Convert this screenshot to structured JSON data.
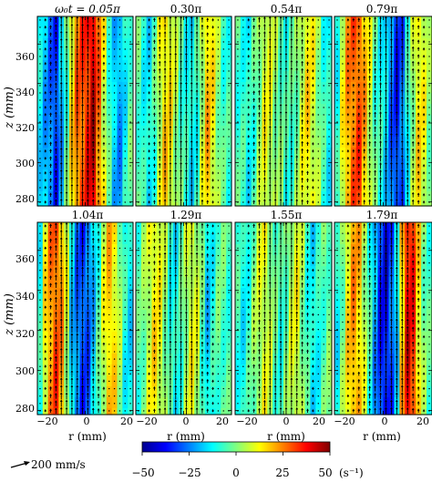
{
  "chart_data": {
    "type": "heatmap",
    "panel_titles": [
      "ω₀t = 0.05π",
      "0.30π",
      "0.54π",
      "0.79π",
      "1.04π",
      "1.29π",
      "1.55π",
      "1.79π"
    ],
    "xlabel": "r (mm)",
    "ylabel": "z (mm)",
    "x_ticks": [
      "−20",
      "0",
      "20"
    ],
    "x_tick_values": [
      -20,
      0,
      20
    ],
    "y_ticks": [
      "280",
      "300",
      "320",
      "340",
      "360"
    ],
    "y_tick_values": [
      280,
      300,
      320,
      340,
      360
    ],
    "xlim": [
      -20,
      20
    ],
    "ylim": [
      278,
      374
    ],
    "colorbar": {
      "ticks": [
        "−50",
        "−25",
        "0",
        "25",
        "50"
      ],
      "tick_values": [
        -50,
        -25,
        0,
        25,
        50
      ],
      "range": [
        -50,
        50
      ],
      "unit": "(s⁻¹)",
      "colormap": "jet"
    },
    "vector_scale_label": "200 mm/s",
    "panels": [
      {
        "title": "ω₀t = 0.05π",
        "vorticity_profile": [
          -14,
          -20,
          -26,
          -34,
          -20,
          -4,
          14,
          26,
          30,
          36,
          42,
          26,
          10,
          -6,
          -18,
          -22,
          -12,
          -4
        ],
        "vector_strength": [
          0.2,
          0.3,
          0.5,
          0.8,
          1.0,
          1.0,
          1.0,
          1.0,
          1.0,
          0.9,
          0.8,
          0.6,
          0.4,
          0.2,
          0.1,
          0.1,
          0.1,
          0.1
        ]
      },
      {
        "title": "0.30π",
        "vorticity_profile": [
          -4,
          -10,
          -14,
          -6,
          8,
          16,
          12,
          4,
          -4,
          -10,
          -14,
          -8,
          6,
          18,
          12,
          2,
          -6,
          -8
        ],
        "vector_strength": [
          0.1,
          0.2,
          0.3,
          0.5,
          0.7,
          0.9,
          1.0,
          1.0,
          1.0,
          1.0,
          1.0,
          0.9,
          0.7,
          0.5,
          0.3,
          0.2,
          0.1,
          0.1
        ]
      },
      {
        "title": "0.54π",
        "vorticity_profile": [
          -6,
          -8,
          -12,
          -6,
          2,
          10,
          8,
          2,
          -2,
          -8,
          -6,
          0,
          8,
          14,
          10,
          2,
          -8,
          -12
        ],
        "vector_strength": [
          0.1,
          0.2,
          0.3,
          0.5,
          0.7,
          0.9,
          1.0,
          1.0,
          1.0,
          1.0,
          1.0,
          0.9,
          0.7,
          0.5,
          0.3,
          0.2,
          0.1,
          0.1
        ]
      },
      {
        "title": "0.79π",
        "vorticity_profile": [
          -10,
          10,
          22,
          28,
          30,
          20,
          8,
          -4,
          -10,
          -16,
          -26,
          -34,
          -28,
          -10,
          4,
          14,
          10,
          0
        ],
        "vector_strength": [
          0.1,
          0.2,
          0.3,
          0.4,
          0.5,
          0.6,
          0.7,
          0.8,
          0.9,
          1.0,
          1.0,
          1.0,
          1.0,
          0.9,
          0.7,
          0.5,
          0.3,
          0.2
        ]
      },
      {
        "title": "1.04π",
        "vorticity_profile": [
          -10,
          12,
          24,
          30,
          22,
          6,
          -16,
          -26,
          -32,
          -28,
          -18,
          -6,
          8,
          18,
          14,
          2,
          -10,
          -14
        ],
        "vector_strength": [
          0.2,
          0.3,
          0.5,
          0.8,
          1.0,
          1.0,
          1.0,
          1.0,
          1.0,
          0.9,
          0.8,
          0.6,
          0.4,
          0.2,
          0.1,
          0.1,
          0.1,
          0.1
        ]
      },
      {
        "title": "1.29π",
        "vorticity_profile": [
          -6,
          0,
          8,
          14,
          10,
          2,
          -8,
          -12,
          -6,
          4,
          10,
          6,
          -4,
          -16,
          -10,
          -4,
          -4,
          -6
        ],
        "vector_strength": [
          0.1,
          0.2,
          0.3,
          0.5,
          0.7,
          0.9,
          1.0,
          1.0,
          1.0,
          1.0,
          1.0,
          0.9,
          0.7,
          0.5,
          0.3,
          0.2,
          0.1,
          0.1
        ]
      },
      {
        "title": "1.55π",
        "vorticity_profile": [
          -8,
          -12,
          -8,
          0,
          6,
          10,
          4,
          -4,
          -8,
          -2,
          6,
          10,
          2,
          -8,
          -14,
          -10,
          -4,
          -2
        ],
        "vector_strength": [
          0.1,
          0.2,
          0.3,
          0.5,
          0.7,
          0.9,
          1.0,
          1.0,
          1.0,
          1.0,
          1.0,
          0.9,
          0.7,
          0.5,
          0.3,
          0.2,
          0.1,
          0.1
        ]
      },
      {
        "title": "1.79π",
        "vorticity_profile": [
          -12,
          0,
          14,
          22,
          18,
          6,
          -8,
          -22,
          -34,
          -38,
          -30,
          -16,
          18,
          38,
          34,
          14,
          0,
          -6
        ],
        "vector_strength": [
          0.1,
          0.2,
          0.3,
          0.4,
          0.5,
          0.6,
          0.7,
          0.8,
          0.9,
          1.0,
          1.0,
          1.0,
          1.0,
          0.9,
          0.7,
          0.5,
          0.3,
          0.2
        ]
      }
    ]
  }
}
